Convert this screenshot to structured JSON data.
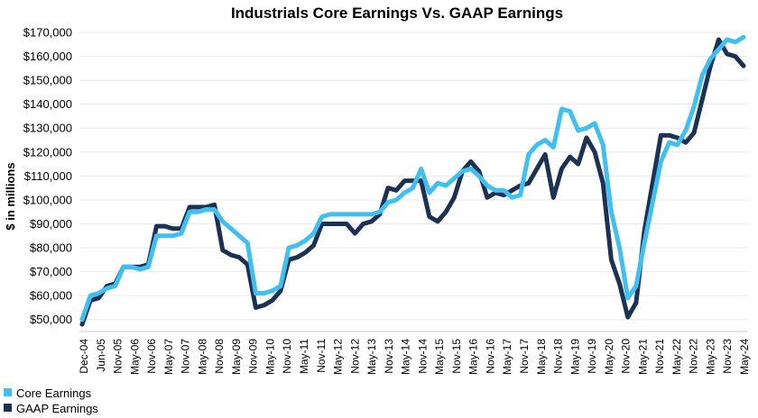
{
  "chart_data": {
    "type": "line",
    "title": "Industrials Core Earnings Vs. GAAP Earnings",
    "ylabel": "$ in millions",
    "xlabel": "",
    "ylim": [
      45000,
      170000
    ],
    "yticks": [
      50000,
      60000,
      70000,
      80000,
      90000,
      100000,
      110000,
      120000,
      130000,
      140000,
      150000,
      160000,
      170000
    ],
    "ytick_labels": [
      "$50,000",
      "$60,000",
      "$70,000",
      "$80,000",
      "$90,000",
      "$100,000",
      "$110,000",
      "$120,000",
      "$130,000",
      "$140,000",
      "$150,000",
      "$160,000",
      "$170,000"
    ],
    "x_tick_labels": [
      "Dec-04",
      "Jun-05",
      "Nov-05",
      "May-06",
      "Nov-06",
      "May-07",
      "Nov-07",
      "May-08",
      "Nov-08",
      "May-09",
      "Nov-09",
      "May-10",
      "Nov-10",
      "May-11",
      "Nov-11",
      "May-12",
      "Nov-12",
      "May-13",
      "Nov-13",
      "May-14",
      "Nov-14",
      "May-15",
      "Nov-15",
      "May-16",
      "Nov-16",
      "May-17",
      "Nov-17",
      "May-18",
      "Nov-18",
      "May-19",
      "Nov-19",
      "May-20",
      "Nov-20",
      "May-21",
      "Nov-21",
      "May-22",
      "Nov-22",
      "May-23",
      "Nov-23",
      "May-24"
    ],
    "grid": true,
    "legend_position": "bottom-left",
    "series": [
      {
        "name": "Core Earnings",
        "color": "#3fc0f0",
        "values": [
          50000,
          60000,
          61000,
          63000,
          64000,
          72000,
          72000,
          71000,
          72000,
          85000,
          85000,
          85000,
          86000,
          95000,
          95000,
          96000,
          96000,
          91000,
          88000,
          85000,
          82000,
          61000,
          61000,
          62000,
          64000,
          80000,
          81000,
          83000,
          86000,
          93000,
          94000,
          94000,
          94000,
          94000,
          94000,
          94000,
          95000,
          99000,
          100000,
          103000,
          105000,
          113000,
          103000,
          107000,
          106000,
          109000,
          112000,
          113000,
          110000,
          106000,
          104000,
          104000,
          101000,
          102000,
          119000,
          123000,
          125000,
          122000,
          138000,
          137000,
          129000,
          130000,
          132000,
          123000,
          95000,
          80000,
          59000,
          64000,
          82000,
          99000,
          116000,
          124000,
          123000,
          129000,
          139000,
          152000,
          159000,
          163000,
          167000,
          166000,
          168000
        ]
      },
      {
        "name": "GAAP Earnings",
        "color": "#1c3255",
        "values": [
          48000,
          58000,
          59000,
          64000,
          65000,
          72000,
          72000,
          72000,
          73000,
          89000,
          89000,
          88000,
          88000,
          97000,
          97000,
          97000,
          98000,
          79000,
          77000,
          76000,
          73000,
          55000,
          56000,
          58000,
          62000,
          75000,
          76000,
          78000,
          81000,
          90000,
          90000,
          90000,
          90000,
          86000,
          90000,
          91000,
          94000,
          105000,
          104000,
          108000,
          108000,
          108000,
          93000,
          91000,
          95000,
          101000,
          112000,
          116000,
          112000,
          101000,
          103000,
          102000,
          104000,
          106000,
          107000,
          113000,
          119000,
          101000,
          113000,
          118000,
          115000,
          126000,
          120000,
          107000,
          75000,
          65000,
          51000,
          57000,
          87000,
          107000,
          127000,
          127000,
          126000,
          124000,
          128000,
          142000,
          156000,
          167000,
          161000,
          160000,
          156000
        ]
      }
    ]
  }
}
